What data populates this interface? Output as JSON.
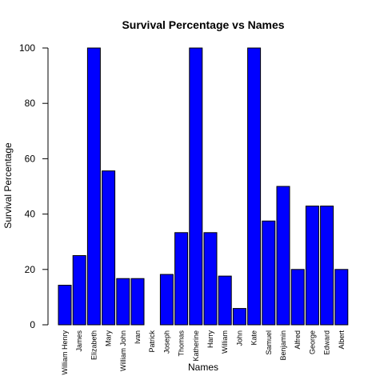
{
  "chart_data": {
    "type": "bar",
    "title": "Survival Percentage vs Names",
    "xlabel": "Names",
    "ylabel": "Survival Percentage",
    "categories": [
      "William Henry",
      "James",
      "Elizabeth",
      "Mary",
      "William John",
      "Ivan",
      "Patrick",
      "Joseph",
      "Thomas",
      "Katherine",
      "Harry",
      "William",
      "John",
      "Kate",
      "Samuel",
      "Benjamin",
      "Alfred",
      "George",
      "Edward",
      "Albert"
    ],
    "values": [
      14.3,
      25.0,
      100,
      55.6,
      16.7,
      16.7,
      0,
      18.2,
      33.3,
      100,
      33.3,
      17.6,
      5.9,
      100,
      37.5,
      50.0,
      20.0,
      42.9,
      42.9,
      20.0
    ],
    "ylim": [
      0,
      100
    ],
    "yticks": [
      0,
      20,
      40,
      60,
      80,
      100
    ],
    "bar_color": "#0000ff",
    "grid": false
  }
}
